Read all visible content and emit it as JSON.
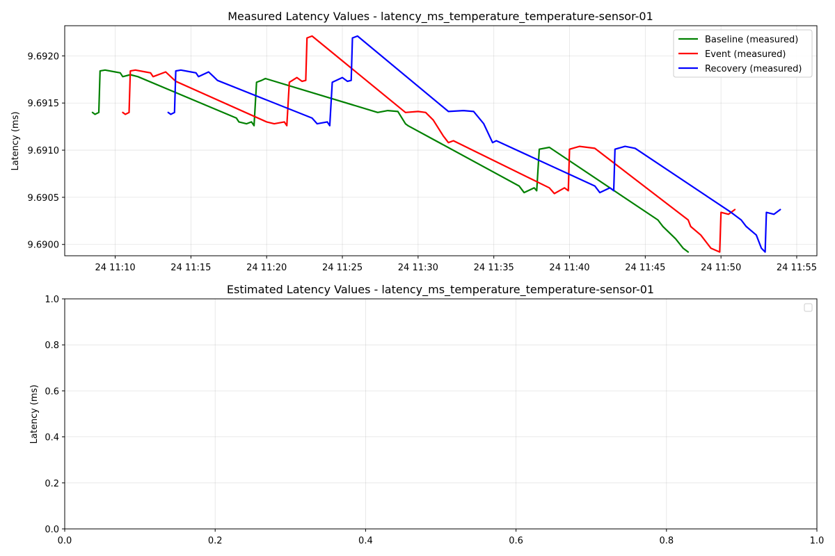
{
  "chart_data": [
    {
      "type": "line",
      "title": "Measured Latency Values - latency_ms_temperature_temperature-sensor-01",
      "xlabel": "",
      "ylabel": "Latency (ms)",
      "xlim": [
        "24 11:06:40",
        "24 11:56:20"
      ],
      "ylim": [
        9.68988,
        9.69232
      ],
      "grid": true,
      "legend_position": "top-right",
      "x_ticks": [
        "24 11:10",
        "24 11:15",
        "24 11:20",
        "24 11:25",
        "24 11:30",
        "24 11:35",
        "24 11:40",
        "24 11:45",
        "24 11:50",
        "24 11:55"
      ],
      "y_ticks": [
        "9.6900",
        "9.6905",
        "9.6910",
        "9.6915",
        "9.6920"
      ],
      "series": [
        {
          "name": "Baseline (measured)",
          "color": "#008000",
          "points": [
            [
              "24 11:08:30",
              9.6914
            ],
            [
              "24 11:08:40",
              9.69138
            ],
            [
              "24 11:08:55",
              9.6914
            ],
            [
              "24 11:09:00",
              9.69184
            ],
            [
              "24 11:09:20",
              9.69185
            ],
            [
              "24 11:10:00",
              9.69183
            ],
            [
              "24 11:10:20",
              9.69182
            ],
            [
              "24 11:10:30",
              9.69178
            ],
            [
              "24 11:11:00",
              9.6918
            ],
            [
              "24 11:11:30",
              9.69178
            ],
            [
              "24 11:18:00",
              9.69134
            ],
            [
              "24 11:18:10",
              9.6913
            ],
            [
              "24 11:18:40",
              9.69128
            ],
            [
              "24 11:19:00",
              9.6913
            ],
            [
              "24 11:19:10",
              9.69126
            ],
            [
              "24 11:19:20",
              9.69172
            ],
            [
              "24 11:19:40",
              9.69174
            ],
            [
              "24 11:19:55",
              9.69176
            ],
            [
              "24 11:27:20",
              9.6914
            ],
            [
              "24 11:28:00",
              9.69142
            ],
            [
              "24 11:28:40",
              9.69141
            ],
            [
              "24 11:29:10",
              9.69128
            ],
            [
              "24 11:29:20",
              9.69126
            ],
            [
              "24 11:36:40",
              9.69062
            ],
            [
              "24 11:37:00",
              9.69055
            ],
            [
              "24 11:37:40",
              9.6906
            ],
            [
              "24 11:37:50",
              9.69057
            ],
            [
              "24 11:38:00",
              9.69101
            ],
            [
              "24 11:38:40",
              9.69103
            ],
            [
              "24 11:45:50",
              9.69026
            ],
            [
              "24 11:46:10",
              9.69019
            ],
            [
              "24 11:47:00",
              9.69006
            ],
            [
              "24 11:47:30",
              9.68996
            ],
            [
              "24 11:47:50",
              9.68992
            ]
          ]
        },
        {
          "name": "Event (measured)",
          "color": "#ff0000",
          "points": [
            [
              "24 11:10:30",
              9.6914
            ],
            [
              "24 11:10:40",
              9.69138
            ],
            [
              "24 11:10:55",
              9.6914
            ],
            [
              "24 11:11:00",
              9.69184
            ],
            [
              "24 11:11:20",
              9.69185
            ],
            [
              "24 11:12:00",
              9.69183
            ],
            [
              "24 11:12:20",
              9.69182
            ],
            [
              "24 11:12:30",
              9.69178
            ],
            [
              "24 11:13:20",
              9.69183
            ],
            [
              "24 11:13:40",
              9.69178
            ],
            [
              "24 11:14:00",
              9.69173
            ],
            [
              "24 11:20:00",
              9.6913
            ],
            [
              "24 11:20:30",
              9.69128
            ],
            [
              "24 11:21:10",
              9.6913
            ],
            [
              "24 11:21:20",
              9.69126
            ],
            [
              "24 11:21:30",
              9.69172
            ],
            [
              "24 11:22:00",
              9.69177
            ],
            [
              "24 11:22:20",
              9.69173
            ],
            [
              "24 11:22:35",
              9.69174
            ],
            [
              "24 11:22:40",
              9.69219
            ],
            [
              "24 11:23:00",
              9.69221
            ],
            [
              "24 11:29:10",
              9.6914
            ],
            [
              "24 11:30:00",
              9.69141
            ],
            [
              "24 11:30:30",
              9.6914
            ],
            [
              "24 11:31:00",
              9.69132
            ],
            [
              "24 11:31:40",
              9.69115
            ],
            [
              "24 11:32:00",
              9.69108
            ],
            [
              "24 11:32:20",
              9.6911
            ],
            [
              "24 11:38:40",
              9.6906
            ],
            [
              "24 11:39:00",
              9.69054
            ],
            [
              "24 11:39:40",
              9.6906
            ],
            [
              "24 11:39:55",
              9.69057
            ],
            [
              "24 11:40:00",
              9.69101
            ],
            [
              "24 11:40:40",
              9.69104
            ],
            [
              "24 11:41:40",
              9.69102
            ],
            [
              "24 11:47:50",
              9.69026
            ],
            [
              "24 11:48:00",
              9.69019
            ],
            [
              "24 11:48:40",
              9.6901
            ],
            [
              "24 11:49:20",
              9.68996
            ],
            [
              "24 11:49:55",
              9.68992
            ],
            [
              "24 11:50:00",
              9.69034
            ],
            [
              "24 11:50:30",
              9.69032
            ],
            [
              "24 11:50:55",
              9.69037
            ]
          ]
        },
        {
          "name": "Recovery (measured)",
          "color": "#0000ff",
          "points": [
            [
              "24 11:13:30",
              9.6914
            ],
            [
              "24 11:13:40",
              9.69138
            ],
            [
              "24 11:13:55",
              9.6914
            ],
            [
              "24 11:14:00",
              9.69184
            ],
            [
              "24 11:14:20",
              9.69185
            ],
            [
              "24 11:15:00",
              9.69183
            ],
            [
              "24 11:15:20",
              9.69182
            ],
            [
              "24 11:15:30",
              9.69178
            ],
            [
              "24 11:16:10",
              9.69183
            ],
            [
              "24 11:16:30",
              9.69178
            ],
            [
              "24 11:16:45",
              9.69174
            ],
            [
              "24 11:23:00",
              9.69134
            ],
            [
              "24 11:23:20",
              9.69128
            ],
            [
              "24 11:24:00",
              9.6913
            ],
            [
              "24 11:24:10",
              9.69126
            ],
            [
              "24 11:24:20",
              9.69172
            ],
            [
              "24 11:25:00",
              9.69177
            ],
            [
              "24 11:25:20",
              9.69173
            ],
            [
              "24 11:25:35",
              9.69174
            ],
            [
              "24 11:25:40",
              9.69219
            ],
            [
              "24 11:26:00",
              9.69221
            ],
            [
              "24 11:32:00",
              9.69141
            ],
            [
              "24 11:33:00",
              9.69142
            ],
            [
              "24 11:33:40",
              9.69141
            ],
            [
              "24 11:34:20",
              9.69128
            ],
            [
              "24 11:34:55",
              9.69108
            ],
            [
              "24 11:35:10",
              9.6911
            ],
            [
              "24 11:41:40",
              9.69062
            ],
            [
              "24 11:42:00",
              9.69055
            ],
            [
              "24 11:42:40",
              9.6906
            ],
            [
              "24 11:42:55",
              9.69057
            ],
            [
              "24 11:43:00",
              9.69101
            ],
            [
              "24 11:43:40",
              9.69104
            ],
            [
              "24 11:44:20",
              9.69102
            ],
            [
              "24 11:50:40",
              9.69034
            ],
            [
              "24 11:51:20",
              9.69026
            ],
            [
              "24 11:51:40",
              9.69019
            ],
            [
              "24 11:52:20",
              9.6901
            ],
            [
              "24 11:52:40",
              9.68996
            ],
            [
              "24 11:52:55",
              9.68992
            ],
            [
              "24 11:53:00",
              9.69034
            ],
            [
              "24 11:53:30",
              9.69032
            ],
            [
              "24 11:53:55",
              9.69037
            ]
          ]
        }
      ]
    },
    {
      "type": "line",
      "title": "Estimated Latency Values - latency_ms_temperature_temperature-sensor-01",
      "xlabel": "",
      "ylabel": "Latency (ms)",
      "xlim": [
        0,
        1
      ],
      "ylim": [
        0,
        1
      ],
      "grid": true,
      "legend_position": "top-right",
      "x_ticks": [
        "0.0",
        "0.2",
        "0.4",
        "0.6",
        "0.8",
        "1.0"
      ],
      "y_ticks": [
        "0.0",
        "0.2",
        "0.4",
        "0.6",
        "0.8",
        "1.0"
      ],
      "series": []
    }
  ]
}
